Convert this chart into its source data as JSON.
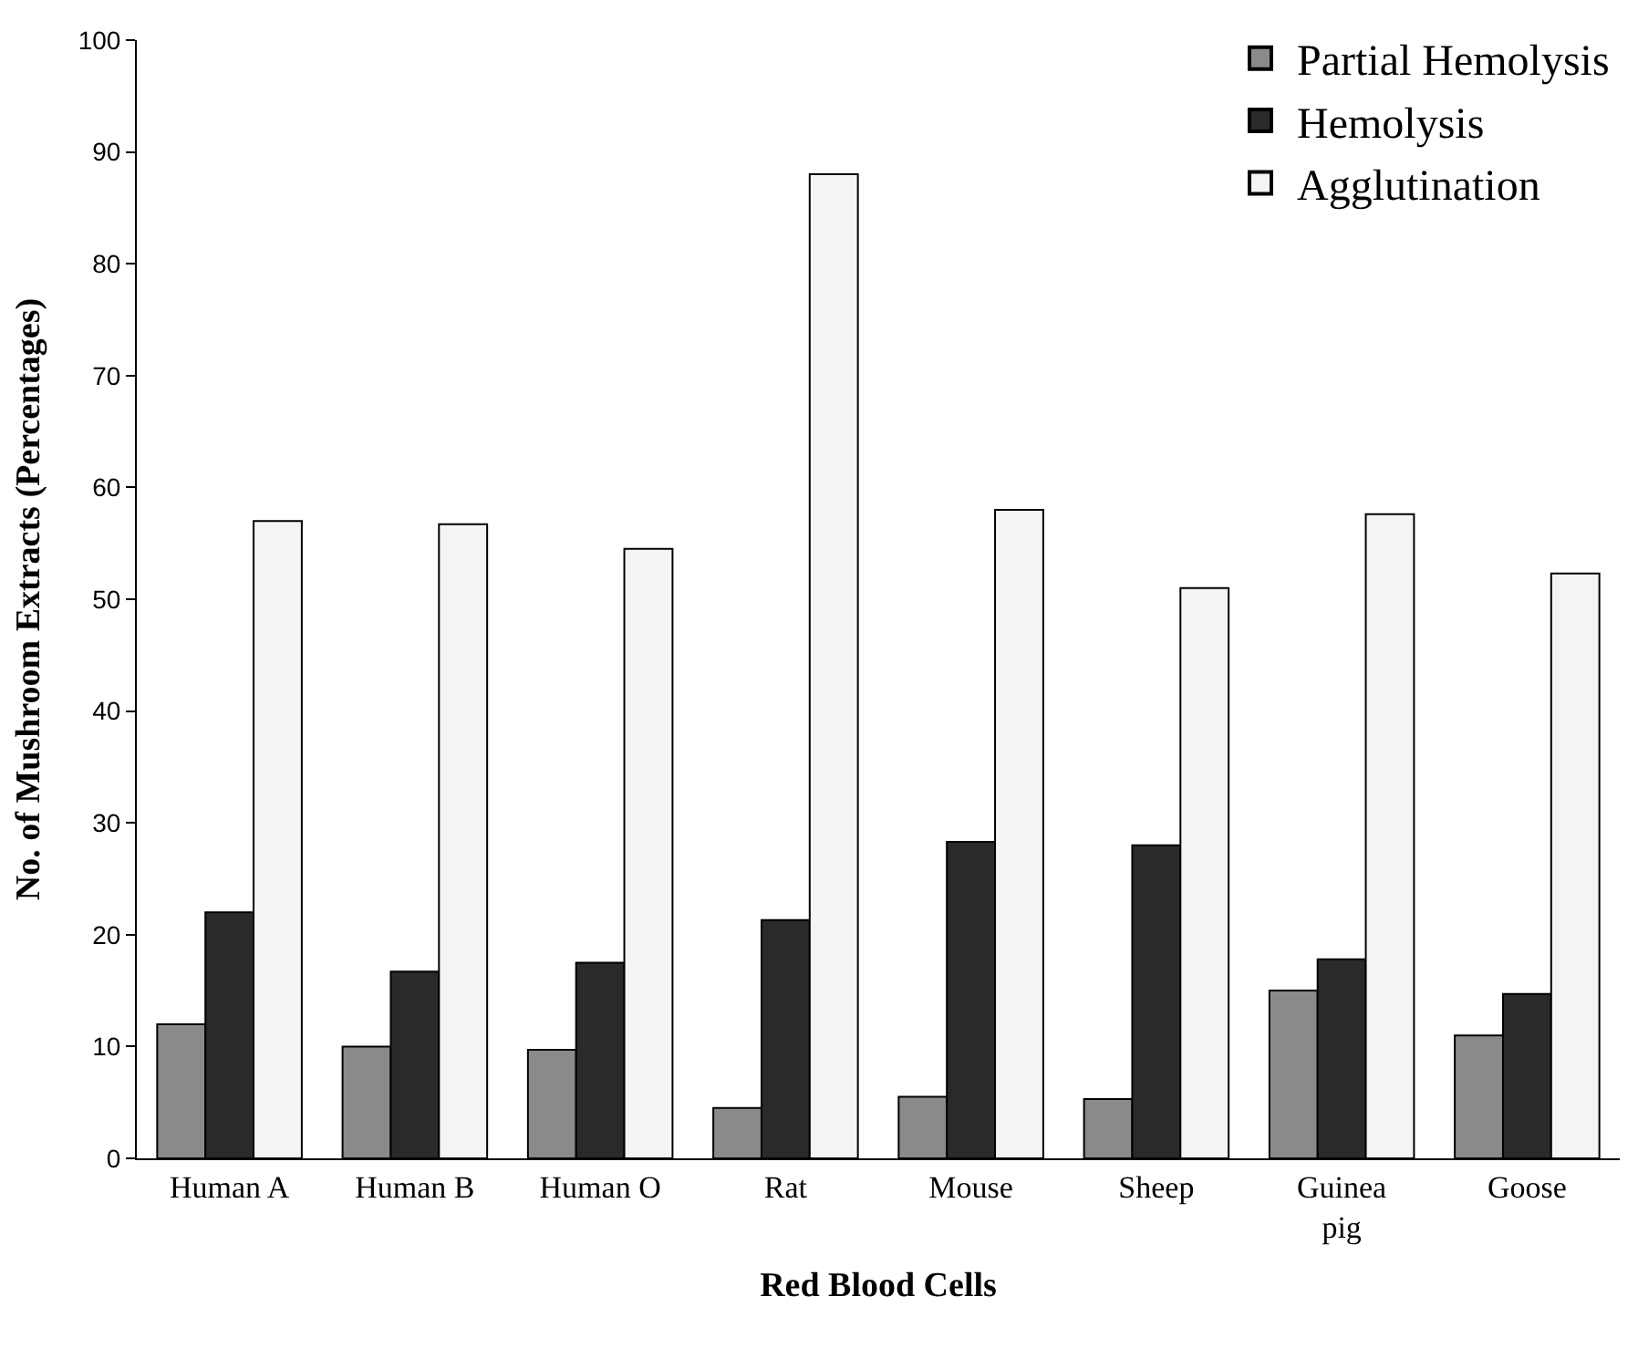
{
  "chart_data": {
    "type": "bar",
    "xlabel": "Red Blood Cells",
    "ylabel": "No. of Mushroom Extracts (Percentages)",
    "categories": [
      "Human A",
      "Human B",
      "Human O",
      "Rat",
      "Mouse",
      "Sheep",
      "Guinea pig",
      "Goose"
    ],
    "series": [
      {
        "name": "Partial Hemolysis",
        "color": "#8a8a8a",
        "values": [
          12,
          10,
          9.7,
          4.5,
          5.5,
          5.3,
          15,
          11
        ]
      },
      {
        "name": "Hemolysis",
        "color": "#2a2a2a",
        "values": [
          22,
          16.7,
          17.5,
          21.3,
          28.3,
          28,
          17.8,
          14.7
        ]
      },
      {
        "name": "Agglutination",
        "color": "#f4f4f4",
        "values": [
          57,
          56.7,
          54.5,
          88,
          58,
          51,
          57.6,
          52.3
        ]
      }
    ],
    "ylim": [
      0,
      100
    ],
    "yticks": [
      0,
      10,
      20,
      30,
      40,
      50,
      60,
      70,
      80,
      90,
      100
    ],
    "legend": "top right"
  }
}
